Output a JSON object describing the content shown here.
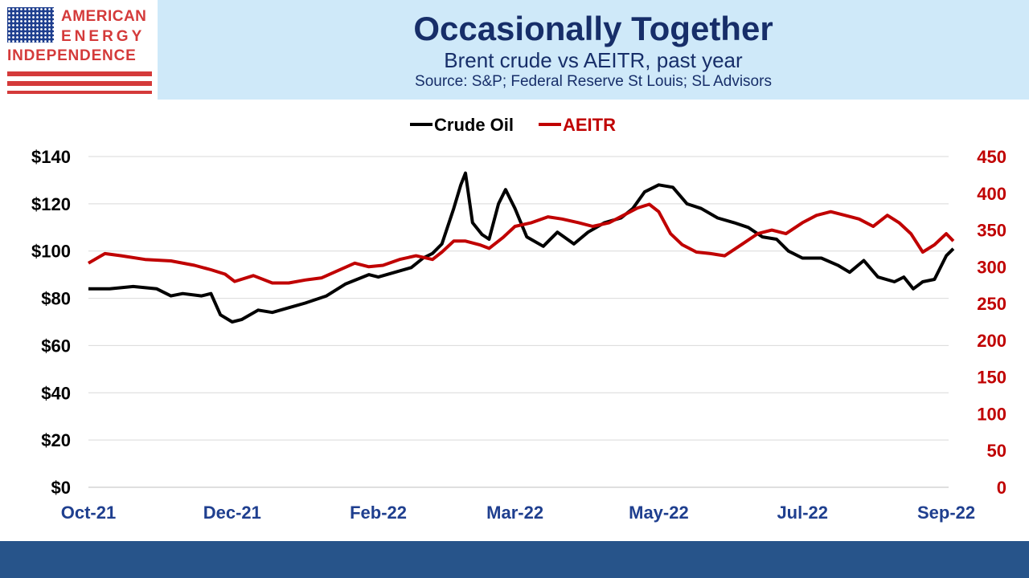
{
  "header": {
    "title": "Occasionally Together",
    "subtitle": "Brent crude vs AEITR, past year",
    "source": "Source: S&P; Federal Reserve St Louis; SL Advisors"
  },
  "logo": {
    "line1": "AMERICAN",
    "line2": "ENERGY",
    "line3": "INDEPENDENCE",
    "icon": "american-flag-icon"
  },
  "colors": {
    "crude": "#000000",
    "aeitr": "#c00000",
    "header_band": "#cfe9f9",
    "title": "#172e69",
    "footer": "#27548a",
    "logo_red": "#d43a3a",
    "gridline": "#d9d9d9"
  },
  "chart_data": {
    "type": "line",
    "legend": "top-center",
    "grid": "horizontal",
    "x_ticks": [
      "Oct-21",
      "Dec-21",
      "Feb-22",
      "Mar-22",
      "May-22",
      "Jul-22",
      "Sep-22"
    ],
    "x_range": [
      "2021-10-01",
      "2022-10-01"
    ],
    "x_tick_dates": [
      "2021-10-01",
      "2021-12-01",
      "2022-02-01",
      "2022-03-31",
      "2022-05-31",
      "2022-07-31",
      "2022-09-30"
    ],
    "y_left": {
      "ticks": [
        "$0",
        "$20",
        "$40",
        "$60",
        "$80",
        "$100",
        "$120",
        "$140"
      ],
      "range": [
        0,
        140
      ]
    },
    "y_right": {
      "ticks": [
        "0",
        "50",
        "100",
        "150",
        "200",
        "250",
        "300",
        "350",
        "400",
        "450"
      ],
      "range": [
        0,
        450
      ]
    },
    "series": [
      {
        "name": "Crude Oil",
        "axis": "left",
        "points": [
          [
            "2021-10-01",
            84
          ],
          [
            "2021-10-10",
            84
          ],
          [
            "2021-10-20",
            85
          ],
          [
            "2021-10-30",
            84
          ],
          [
            "2021-11-05",
            81
          ],
          [
            "2021-11-10",
            82
          ],
          [
            "2021-11-18",
            81
          ],
          [
            "2021-11-22",
            82
          ],
          [
            "2021-11-26",
            73
          ],
          [
            "2021-12-01",
            70
          ],
          [
            "2021-12-05",
            71
          ],
          [
            "2021-12-12",
            75
          ],
          [
            "2021-12-18",
            74
          ],
          [
            "2021-12-25",
            76
          ],
          [
            "2022-01-01",
            78
          ],
          [
            "2022-01-10",
            81
          ],
          [
            "2022-01-18",
            86
          ],
          [
            "2022-01-28",
            90
          ],
          [
            "2022-02-01",
            89
          ],
          [
            "2022-02-08",
            91
          ],
          [
            "2022-02-15",
            93
          ],
          [
            "2022-02-20",
            97
          ],
          [
            "2022-02-24",
            99
          ],
          [
            "2022-02-28",
            103
          ],
          [
            "2022-03-05",
            118
          ],
          [
            "2022-03-08",
            128
          ],
          [
            "2022-03-10",
            133
          ],
          [
            "2022-03-13",
            112
          ],
          [
            "2022-03-17",
            107
          ],
          [
            "2022-03-20",
            105
          ],
          [
            "2022-03-24",
            120
          ],
          [
            "2022-03-27",
            126
          ],
          [
            "2022-03-31",
            118
          ],
          [
            "2022-04-05",
            106
          ],
          [
            "2022-04-12",
            102
          ],
          [
            "2022-04-18",
            108
          ],
          [
            "2022-04-25",
            103
          ],
          [
            "2022-05-01",
            108
          ],
          [
            "2022-05-08",
            112
          ],
          [
            "2022-05-15",
            114
          ],
          [
            "2022-05-20",
            118
          ],
          [
            "2022-05-25",
            125
          ],
          [
            "2022-05-31",
            128
          ],
          [
            "2022-06-06",
            127
          ],
          [
            "2022-06-12",
            120
          ],
          [
            "2022-06-18",
            118
          ],
          [
            "2022-06-25",
            114
          ],
          [
            "2022-07-02",
            112
          ],
          [
            "2022-07-08",
            110
          ],
          [
            "2022-07-14",
            106
          ],
          [
            "2022-07-20",
            105
          ],
          [
            "2022-07-25",
            100
          ],
          [
            "2022-07-31",
            97
          ],
          [
            "2022-08-08",
            97
          ],
          [
            "2022-08-15",
            94
          ],
          [
            "2022-08-20",
            91
          ],
          [
            "2022-08-26",
            96
          ],
          [
            "2022-09-01",
            89
          ],
          [
            "2022-09-08",
            87
          ],
          [
            "2022-09-12",
            89
          ],
          [
            "2022-09-16",
            84
          ],
          [
            "2022-09-20",
            87
          ],
          [
            "2022-09-25",
            88
          ],
          [
            "2022-09-30",
            98
          ],
          [
            "2022-10-03",
            101
          ]
        ]
      },
      {
        "name": "AEITR",
        "axis": "right",
        "points": [
          [
            "2021-10-01",
            305
          ],
          [
            "2021-10-08",
            318
          ],
          [
            "2021-10-15",
            315
          ],
          [
            "2021-10-25",
            310
          ],
          [
            "2021-11-05",
            308
          ],
          [
            "2021-11-15",
            302
          ],
          [
            "2021-11-22",
            296
          ],
          [
            "2021-11-28",
            290
          ],
          [
            "2021-12-02",
            280
          ],
          [
            "2021-12-10",
            288
          ],
          [
            "2021-12-18",
            278
          ],
          [
            "2021-12-25",
            278
          ],
          [
            "2022-01-01",
            282
          ],
          [
            "2022-01-08",
            285
          ],
          [
            "2022-01-15",
            295
          ],
          [
            "2022-01-22",
            305
          ],
          [
            "2022-01-28",
            300
          ],
          [
            "2022-02-03",
            302
          ],
          [
            "2022-02-10",
            310
          ],
          [
            "2022-02-17",
            315
          ],
          [
            "2022-02-24",
            310
          ],
          [
            "2022-02-28",
            320
          ],
          [
            "2022-03-05",
            335
          ],
          [
            "2022-03-10",
            335
          ],
          [
            "2022-03-16",
            330
          ],
          [
            "2022-03-20",
            325
          ],
          [
            "2022-03-26",
            340
          ],
          [
            "2022-03-31",
            355
          ],
          [
            "2022-04-07",
            360
          ],
          [
            "2022-04-14",
            368
          ],
          [
            "2022-04-20",
            365
          ],
          [
            "2022-04-27",
            360
          ],
          [
            "2022-05-03",
            355
          ],
          [
            "2022-05-10",
            360
          ],
          [
            "2022-05-16",
            370
          ],
          [
            "2022-05-22",
            380
          ],
          [
            "2022-05-27",
            385
          ],
          [
            "2022-05-31",
            375
          ],
          [
            "2022-06-05",
            345
          ],
          [
            "2022-06-10",
            330
          ],
          [
            "2022-06-16",
            320
          ],
          [
            "2022-06-22",
            318
          ],
          [
            "2022-06-28",
            315
          ],
          [
            "2022-07-05",
            330
          ],
          [
            "2022-07-12",
            345
          ],
          [
            "2022-07-18",
            350
          ],
          [
            "2022-07-24",
            345
          ],
          [
            "2022-07-31",
            360
          ],
          [
            "2022-08-06",
            370
          ],
          [
            "2022-08-12",
            375
          ],
          [
            "2022-08-18",
            370
          ],
          [
            "2022-08-24",
            365
          ],
          [
            "2022-08-30",
            355
          ],
          [
            "2022-09-05",
            370
          ],
          [
            "2022-09-10",
            360
          ],
          [
            "2022-09-15",
            345
          ],
          [
            "2022-09-20",
            320
          ],
          [
            "2022-09-25",
            330
          ],
          [
            "2022-09-30",
            345
          ],
          [
            "2022-10-03",
            335
          ]
        ]
      }
    ]
  }
}
